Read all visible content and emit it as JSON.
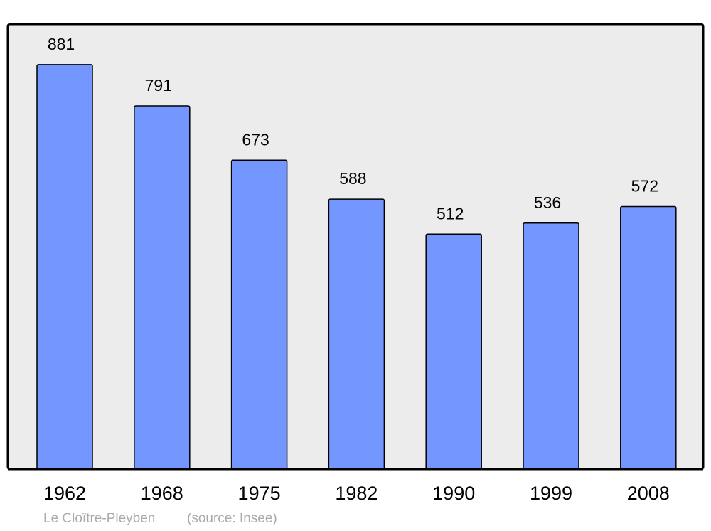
{
  "chart_data": {
    "type": "bar",
    "title": "Le Cloître-Pleyben",
    "source": "(source: Insee)",
    "categories": [
      "1962",
      "1968",
      "1975",
      "1982",
      "1990",
      "1999",
      "2008"
    ],
    "values": [
      881,
      791,
      673,
      588,
      512,
      536,
      572
    ],
    "color": "#7396ff",
    "ylim": [
      0,
      969
    ],
    "grid": false
  }
}
